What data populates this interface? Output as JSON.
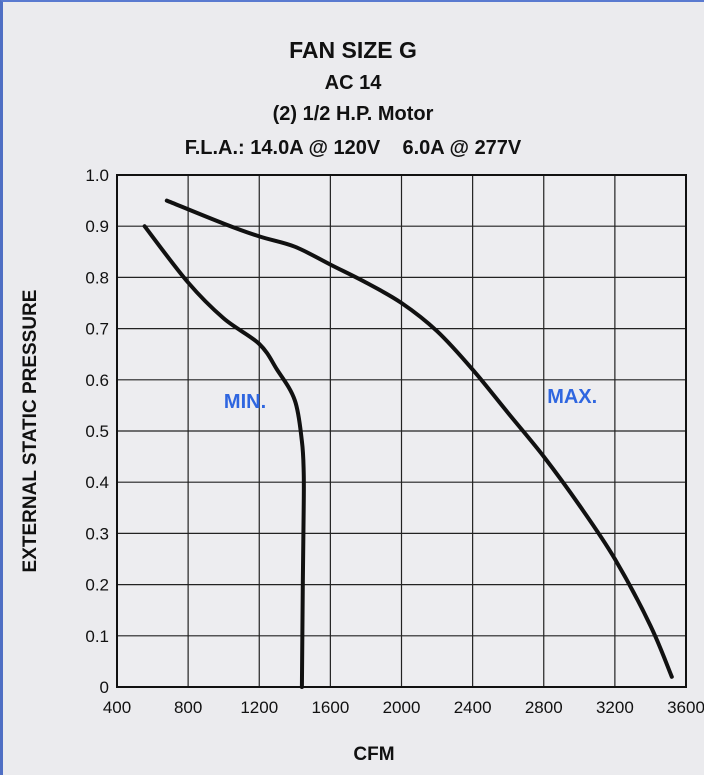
{
  "chart_data": {
    "type": "line",
    "title_lines": [
      "FAN SIZE G",
      "AC 14",
      "(2) 1/2 H.P. Motor",
      "F.L.A.: 14.0A @ 120V    6.0A @ 277V"
    ],
    "xlabel": "CFM",
    "ylabel": "EXTERNAL STATIC PRESSURE",
    "xlim": [
      400,
      3600
    ],
    "ylim": [
      0,
      1.0
    ],
    "x_ticks": [
      400,
      800,
      1200,
      1600,
      2000,
      2400,
      2800,
      3200,
      3600
    ],
    "y_ticks": [
      0,
      0.1,
      0.2,
      0.3,
      0.4,
      0.5,
      0.6,
      0.7,
      0.8,
      0.9,
      1.0
    ],
    "x_tick_labels": [
      "400",
      "800",
      "1200",
      "1600",
      "2000",
      "2400",
      "2800",
      "3200",
      "3600"
    ],
    "y_tick_labels": [
      "0",
      "0.1",
      "0.2",
      "0.3",
      "0.4",
      "0.5",
      "0.6",
      "0.7",
      "0.8",
      "0.9",
      "1.0"
    ],
    "grid": true,
    "series": [
      {
        "name": "MIN.",
        "label_color": "#2f66e0",
        "x": [
          555,
          800,
          1000,
          1200,
          1300,
          1400,
          1440,
          1450,
          1450,
          1445,
          1440
        ],
        "y": [
          0.9,
          0.79,
          0.72,
          0.67,
          0.62,
          0.56,
          0.48,
          0.42,
          0.35,
          0.2,
          0.0
        ]
      },
      {
        "name": "MAX.",
        "label_color": "#2f66e0",
        "x": [
          680,
          1000,
          1200,
          1400,
          1600,
          1800,
          2000,
          2200,
          2400,
          2600,
          2800,
          3000,
          3200,
          3400,
          3520
        ],
        "y": [
          0.95,
          0.905,
          0.88,
          0.86,
          0.825,
          0.79,
          0.75,
          0.695,
          0.62,
          0.535,
          0.45,
          0.355,
          0.25,
          0.12,
          0.02
        ]
      }
    ]
  }
}
